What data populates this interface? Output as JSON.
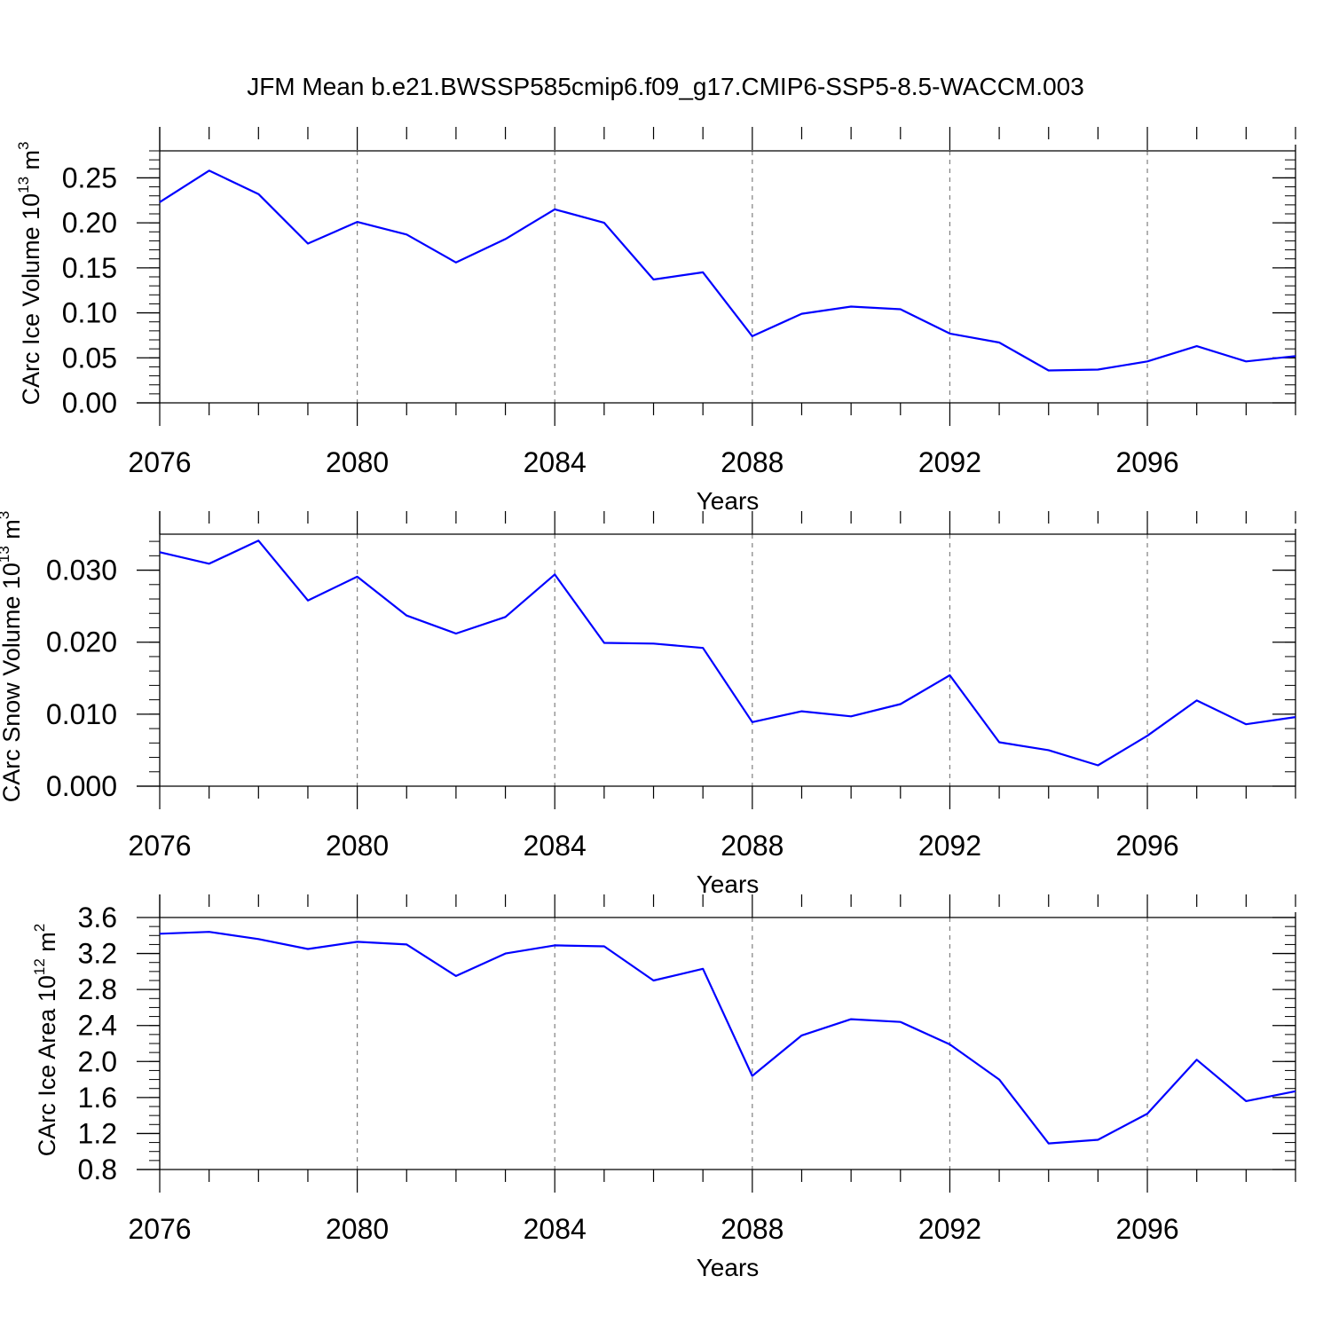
{
  "title": "JFM Mean b.e21.BWSSP585cmip6.f09_g17.CMIP6-SSP5-8.5-WACCM.003",
  "colors": {
    "line": "#0000ff",
    "axes": "#000000",
    "grid": "#808080",
    "background": "#ffffff"
  },
  "chart_data": [
    {
      "type": "line",
      "xlabel": "Years",
      "ylabel_main": "CArc Ice Volume 10",
      "ylabel_exp": "13",
      "ylabel_unit": " m",
      "ylabel_unit_exp": "3",
      "xlim": [
        2076,
        2099
      ],
      "ylim": [
        0.0,
        0.28
      ],
      "xticks": [
        2076,
        2080,
        2084,
        2088,
        2092,
        2096
      ],
      "yticks": [
        "0.00",
        "0.05",
        "0.10",
        "0.15",
        "0.20",
        "0.25"
      ],
      "yminor_step": 0.01,
      "grid": "vertical dashed at major x ticks",
      "series": [
        {
          "x": [
            2076,
            2077,
            2078,
            2079,
            2080,
            2081,
            2082,
            2083,
            2084,
            2085,
            2086,
            2087,
            2088,
            2089,
            2090,
            2091,
            2092,
            2093,
            2094,
            2095,
            2096,
            2097,
            2098,
            2099
          ],
          "values": [
            0.223,
            0.258,
            0.232,
            0.177,
            0.201,
            0.187,
            0.156,
            0.182,
            0.215,
            0.2,
            0.137,
            0.145,
            0.074,
            0.099,
            0.107,
            0.104,
            0.077,
            0.067,
            0.036,
            0.037,
            0.046,
            0.063,
            0.046,
            0.052
          ]
        }
      ]
    },
    {
      "type": "line",
      "xlabel": "Years",
      "ylabel_main": "CArc Snow Volume 10",
      "ylabel_exp": "13",
      "ylabel_unit": " m",
      "ylabel_unit_exp": "3",
      "xlim": [
        2076,
        2099
      ],
      "ylim": [
        0.0,
        0.035
      ],
      "xticks": [
        2076,
        2080,
        2084,
        2088,
        2092,
        2096
      ],
      "yticks": [
        "0.000",
        "0.010",
        "0.020",
        "0.030"
      ],
      "yminor_step": 0.002,
      "grid": "vertical dashed at major x ticks",
      "series": [
        {
          "x": [
            2076,
            2077,
            2078,
            2079,
            2080,
            2081,
            2082,
            2083,
            2084,
            2085,
            2086,
            2087,
            2088,
            2089,
            2090,
            2091,
            2092,
            2093,
            2094,
            2095,
            2096,
            2097,
            2098,
            2099
          ],
          "values": [
            0.0325,
            0.0309,
            0.0341,
            0.0258,
            0.0291,
            0.0237,
            0.0212,
            0.0235,
            0.0294,
            0.0199,
            0.0198,
            0.0192,
            0.0089,
            0.0104,
            0.0097,
            0.0114,
            0.0154,
            0.0061,
            0.005,
            0.0029,
            0.007,
            0.0119,
            0.0086,
            0.0096
          ]
        }
      ]
    },
    {
      "type": "line",
      "xlabel": "Years",
      "ylabel_main": "CArc Ice Area 10",
      "ylabel_exp": "12",
      "ylabel_unit": " m",
      "ylabel_unit_exp": "2",
      "xlim": [
        2076,
        2099
      ],
      "ylim": [
        0.8,
        3.6
      ],
      "xticks": [
        2076,
        2080,
        2084,
        2088,
        2092,
        2096
      ],
      "yticks": [
        "0.8",
        "1.2",
        "1.6",
        "2.0",
        "2.4",
        "2.8",
        "3.2",
        "3.6"
      ],
      "yminor_step": 0.1,
      "grid": "vertical dashed at major x ticks",
      "series": [
        {
          "x": [
            2076,
            2077,
            2078,
            2079,
            2080,
            2081,
            2082,
            2083,
            2084,
            2085,
            2086,
            2087,
            2088,
            2089,
            2090,
            2091,
            2092,
            2093,
            2094,
            2095,
            2096,
            2097,
            2098,
            2099
          ],
          "values": [
            3.42,
            3.44,
            3.36,
            3.25,
            3.33,
            3.3,
            2.95,
            3.2,
            3.29,
            3.28,
            2.9,
            3.03,
            1.84,
            2.29,
            2.47,
            2.44,
            2.19,
            1.8,
            1.09,
            1.13,
            1.42,
            2.02,
            1.56,
            1.67
          ]
        }
      ]
    }
  ]
}
